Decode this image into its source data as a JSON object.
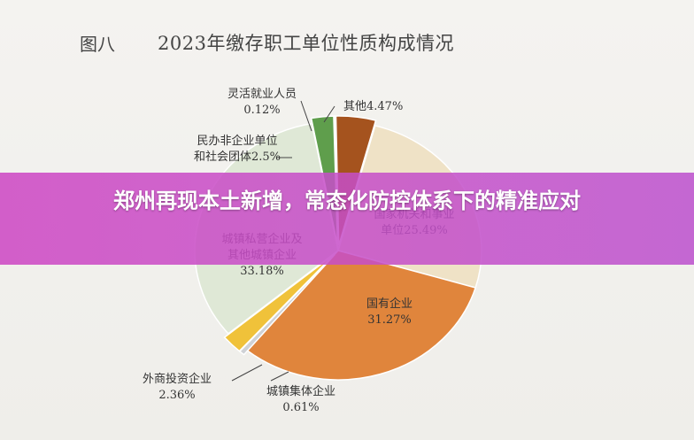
{
  "figure": {
    "number": "图八",
    "title": "2023年缴存职工单位性质构成情况"
  },
  "banner": {
    "headline": "郑州再现本土新增，常态化防控体系下的精准应对"
  },
  "chart_data": {
    "type": "pie",
    "title": "2023年缴存职工单位性质构成情况",
    "unit": "%",
    "slices": [
      {
        "label_lines": [
          "其他4.47%"
        ],
        "name": "其他",
        "value": 4.47,
        "color": "#a5531e"
      },
      {
        "label_lines": [
          "国家机关和事业",
          "单位25.49%"
        ],
        "name": "国家机关和事业单位",
        "value": 25.49,
        "color": "#efe2c6"
      },
      {
        "label_lines": [
          "国有企业",
          "31.27%"
        ],
        "name": "国有企业",
        "value": 31.27,
        "color": "#e0853c"
      },
      {
        "label_lines": [
          "城镇集体企业",
          "0.61%"
        ],
        "name": "城镇集体企业",
        "value": 0.61,
        "color": "#cfd2d6"
      },
      {
        "label_lines": [
          "外商投资企业",
          "2.36%"
        ],
        "name": "外商投资企业",
        "value": 2.36,
        "color": "#f0c23a"
      },
      {
        "label_lines": [
          "城镇私营企业及",
          "其他城镇企业",
          "33.18%"
        ],
        "name": "城镇私营企业及其他城镇企业",
        "value": 33.18,
        "color": "#dfe8d6"
      },
      {
        "label_lines": [
          "民办非企业单位",
          "和社会团体2.5%"
        ],
        "name": "民办非企业单位和社会团体",
        "value": 2.5,
        "color": "#5f9e4c"
      },
      {
        "label_lines": [
          "灵活就业人员",
          "0.12%"
        ],
        "name": "灵活就业人员",
        "value": 0.12,
        "color": "#d9d9d9"
      }
    ]
  }
}
